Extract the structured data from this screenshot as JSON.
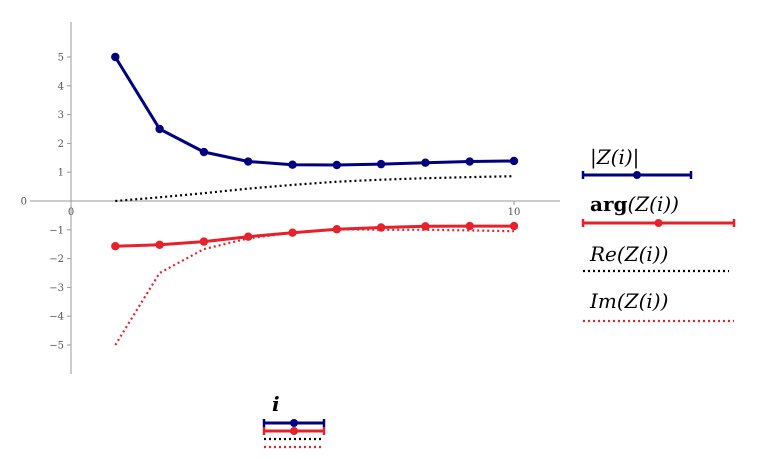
{
  "chart_data": {
    "type": "line",
    "title": "",
    "xlabel": "i",
    "ylabel": "",
    "xlim": [
      -1,
      11
    ],
    "ylim": [
      -6,
      6
    ],
    "x_ticks": [
      0,
      10
    ],
    "y_ticks": [
      5,
      4,
      3,
      2,
      1,
      0,
      -1,
      -2,
      -3,
      -4,
      -5
    ],
    "x_tick_labels": [
      "0",
      "10"
    ],
    "y_tick_labels": [
      "5",
      "4",
      "3",
      "2",
      "1",
      "0",
      "−1",
      "−2",
      "−3",
      "−4",
      "−5"
    ],
    "x": [
      1,
      2,
      3,
      4,
      5,
      6,
      7,
      8,
      9,
      10
    ],
    "series": [
      {
        "name": "|Z(i)|",
        "legend_text": "|Z(i)|",
        "color": "#000080",
        "style": "solid-markers",
        "values": [
          5.0,
          2.5,
          1.7,
          1.37,
          1.26,
          1.25,
          1.28,
          1.33,
          1.37,
          1.39
        ]
      },
      {
        "name": "arg(Z(i))",
        "legend_prefix": "arg",
        "legend_suffix": "(Z(i))",
        "color": "#e8202a",
        "style": "solid-markers",
        "values": [
          -1.57,
          -1.52,
          -1.41,
          -1.24,
          -1.1,
          -0.98,
          -0.92,
          -0.88,
          -0.87,
          -0.87
        ]
      },
      {
        "name": "Re(Z(i))",
        "legend_text": "Re(Z(i))",
        "color": "#000000",
        "style": "dotted",
        "values": [
          0.0,
          0.13,
          0.27,
          0.43,
          0.56,
          0.67,
          0.74,
          0.79,
          0.83,
          0.86
        ]
      },
      {
        "name": "Im(Z(i))",
        "legend_text": "Im(Z(i))",
        "color": "#e8202a",
        "style": "dotted",
        "values": [
          -5.0,
          -2.5,
          -1.67,
          -1.3,
          -1.1,
          -0.98,
          -1.0,
          -1.0,
          -1.02,
          -1.05
        ]
      }
    ],
    "grid": false,
    "legend": "right"
  }
}
